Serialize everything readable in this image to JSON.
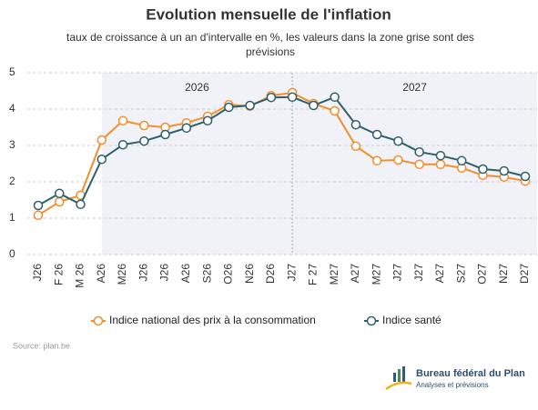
{
  "chart_data": {
    "type": "line",
    "title": "Evolution mensuelle de l'inflation",
    "subtitle": [
      "taux de croissance à un an d'intervalle en %, les valeurs dans la zone grise sont des",
      "prévisions"
    ],
    "categories": [
      "J26",
      "F 26",
      "M 26",
      "A26",
      "M26",
      "J26",
      "J26",
      "A26",
      "S26",
      "O26",
      "N26",
      "D26",
      "J27",
      "F 27",
      "M27",
      "A27",
      "M27",
      "J27",
      "J27",
      "A27",
      "S27",
      "O27",
      "N27",
      "D27"
    ],
    "series": [
      {
        "name": "Indice national des prix à la consommation",
        "color": "#f28e2b",
        "values": [
          1.08,
          1.45,
          1.63,
          3.15,
          3.68,
          3.55,
          3.5,
          3.62,
          3.8,
          4.12,
          4.08,
          4.37,
          4.45,
          4.15,
          3.95,
          2.98,
          2.58,
          2.6,
          2.48,
          2.48,
          2.38,
          2.18,
          2.13,
          2.02
        ]
      },
      {
        "name": "Indice santé",
        "color": "#2e5f6e",
        "values": [
          1.35,
          1.68,
          1.38,
          2.62,
          3.02,
          3.12,
          3.3,
          3.48,
          3.68,
          4.05,
          4.1,
          4.32,
          4.33,
          4.1,
          4.33,
          3.57,
          3.3,
          3.12,
          2.82,
          2.72,
          2.58,
          2.35,
          2.3,
          2.15
        ]
      }
    ],
    "ylim": [
      0,
      5
    ],
    "yticks": [
      0,
      1,
      2,
      3,
      4,
      5
    ],
    "grid": true,
    "shaded_from_index": 3,
    "divider_index": 12,
    "period_labels": [
      "2026",
      "2027"
    ],
    "source": "Source: plan.be",
    "logo": {
      "name": "Bureau fédéral du Plan",
      "tagline": "Analyses et prévisions"
    }
  }
}
